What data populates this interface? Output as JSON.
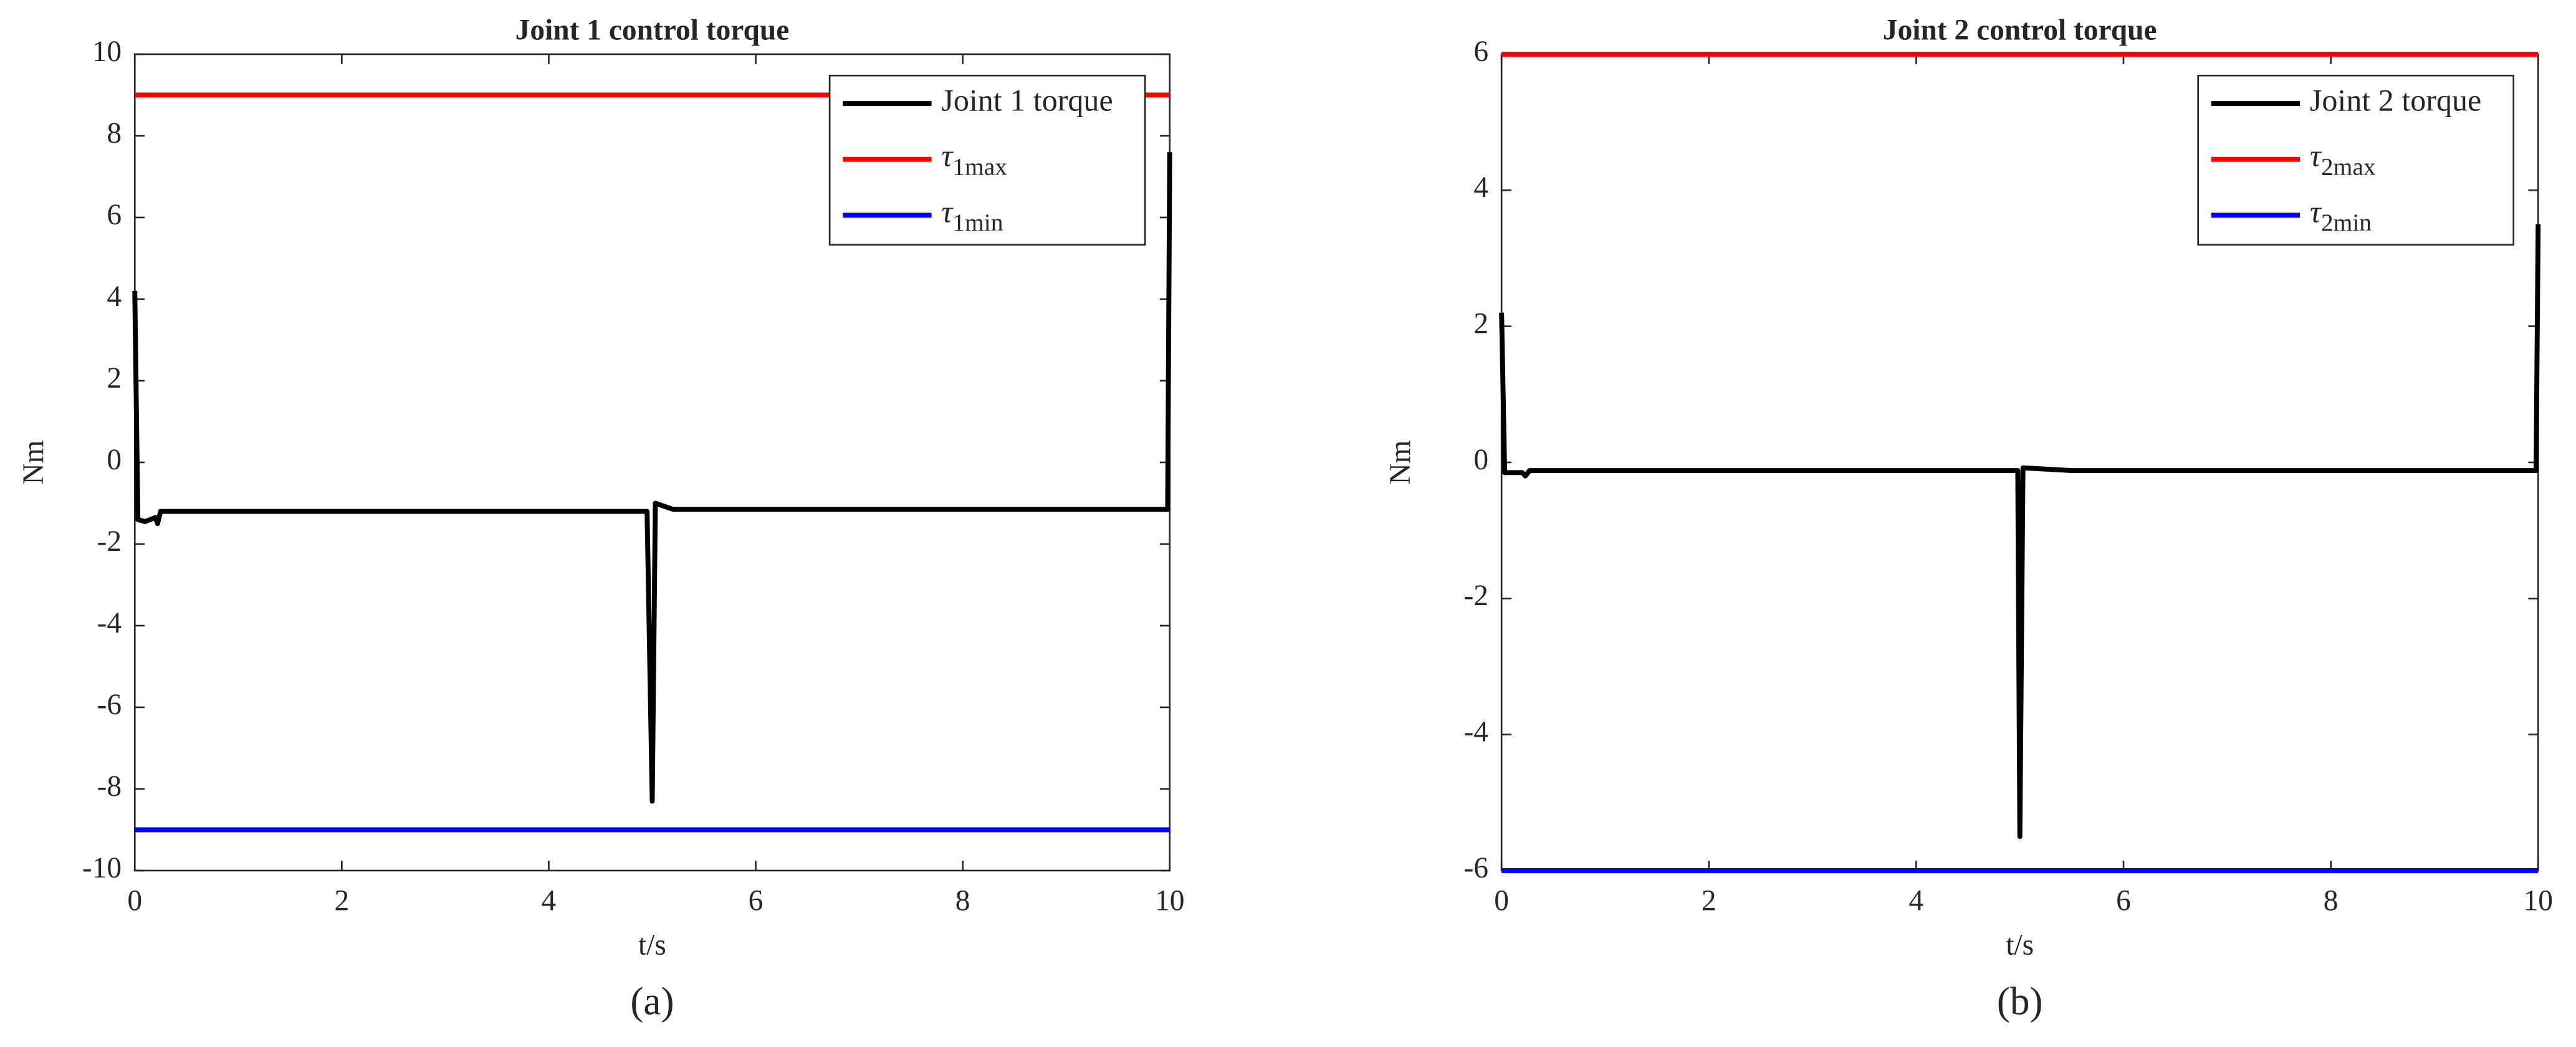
{
  "chart_data": [
    {
      "type": "line",
      "title": "Joint 1 control torque",
      "xlabel": "t/s",
      "ylabel": "Nm",
      "caption": "(a)",
      "xlim": [
        0,
        10
      ],
      "xticks": [
        0,
        2,
        4,
        6,
        8,
        10
      ],
      "ylim": [
        -10,
        10
      ],
      "yticks": [
        -10,
        -8,
        -6,
        -4,
        -2,
        0,
        2,
        4,
        6,
        8,
        10
      ],
      "grid": false,
      "legend": "northeast",
      "series": [
        {
          "name": "Joint 1 torque",
          "color": "#000000",
          "x": [
            0,
            0.03,
            0.1,
            0.2,
            0.22,
            0.25,
            4.95,
            5.0,
            5.03,
            5.2,
            9.98,
            10
          ],
          "values": [
            4.2,
            -1.4,
            -1.45,
            -1.35,
            -1.5,
            -1.2,
            -1.2,
            -8.3,
            -1.0,
            -1.15,
            -1.15,
            7.6
          ]
        },
        {
          "name": "τ1max",
          "color": "#ff0000",
          "x": [
            0,
            10
          ],
          "values": [
            9,
            9
          ]
        },
        {
          "name": "τ1min",
          "color": "#0000ff",
          "x": [
            0,
            10
          ],
          "values": [
            -9,
            -9
          ]
        }
      ]
    },
    {
      "type": "line",
      "title": "Joint 2 control torque",
      "xlabel": "t/s",
      "ylabel": "Nm",
      "caption": "(b)",
      "xlim": [
        0,
        10
      ],
      "xticks": [
        0,
        2,
        4,
        6,
        8,
        10
      ],
      "ylim": [
        -6,
        6
      ],
      "yticks": [
        -6,
        -4,
        -2,
        0,
        2,
        4,
        6
      ],
      "grid": false,
      "legend": "northeast",
      "series": [
        {
          "name": "Joint 2 torque",
          "color": "#000000",
          "x": [
            0,
            0.03,
            0.2,
            0.23,
            0.27,
            4.98,
            5.0,
            5.03,
            5.5,
            9.98,
            10
          ],
          "values": [
            2.2,
            -0.15,
            -0.15,
            -0.2,
            -0.12,
            -0.12,
            -5.5,
            -0.08,
            -0.12,
            -0.12,
            3.5
          ]
        },
        {
          "name": "τ2max",
          "color": "#ff0000",
          "x": [
            0,
            10
          ],
          "values": [
            6,
            6
          ]
        },
        {
          "name": "τ2min",
          "color": "#0000ff",
          "x": [
            0,
            10
          ],
          "values": [
            -6,
            -6
          ]
        }
      ]
    }
  ]
}
